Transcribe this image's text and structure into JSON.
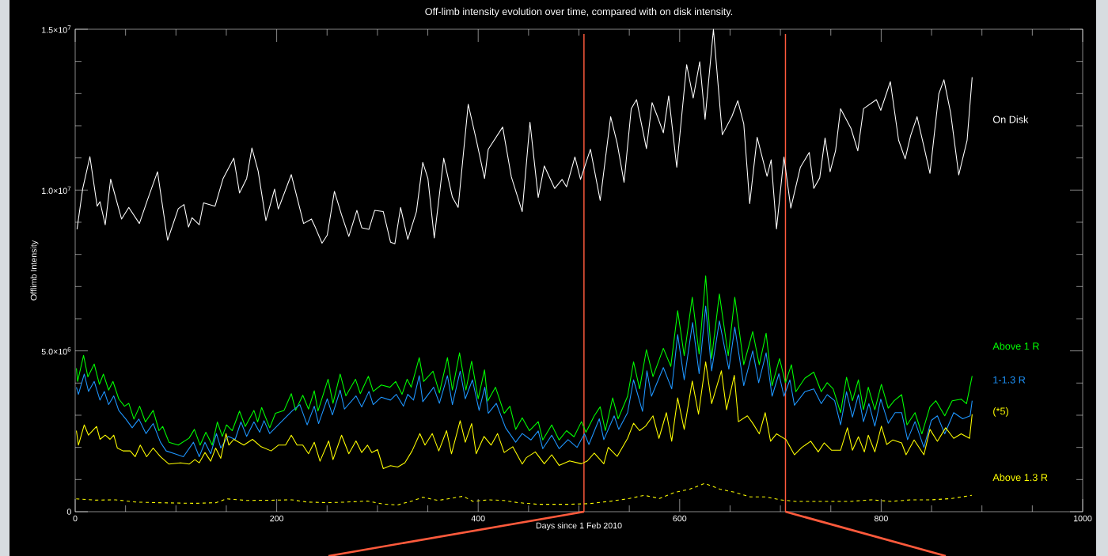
{
  "chart_data": {
    "type": "line",
    "title": "Off-limb intensity evolution over time, compared with on disk intensity.",
    "xlabel": "Days since 1 Feb 2010",
    "ylabel": "Offlimb Intensity",
    "xlim": [
      0,
      1000
    ],
    "ylim": [
      0,
      15000000.0
    ],
    "xticks": [
      0,
      {
        "value": 50,
        "label": null
      },
      {
        "value": 100,
        "label": null
      },
      {
        "value": 150,
        "label": null
      },
      200,
      {
        "value": 250,
        "label": null
      },
      {
        "value": 300,
        "label": null
      },
      {
        "value": 350,
        "label": null
      },
      400,
      {
        "value": 450,
        "label": null
      },
      {
        "value": 500,
        "label": null
      },
      {
        "value": 550,
        "label": null
      },
      600,
      {
        "value": 650,
        "label": null
      },
      {
        "value": 700,
        "label": null
      },
      {
        "value": 750,
        "label": null
      },
      800,
      {
        "value": 850,
        "label": null
      },
      {
        "value": 900,
        "label": null
      },
      {
        "value": 950,
        "label": null
      },
      1000
    ],
    "yticks": [
      0,
      {
        "value": 1000000.0,
        "label": null
      },
      {
        "value": 2000000.0,
        "label": null
      },
      {
        "value": 3000000.0,
        "label": null
      },
      {
        "value": 4000000.0,
        "label": null
      },
      {
        "value": 5000000.0,
        "label": "5.0×10$^{6}$"
      },
      {
        "value": 6000000.0,
        "label": null
      },
      {
        "value": 7000000.0,
        "label": null
      },
      {
        "value": 8000000.0,
        "label": null
      },
      {
        "value": 9000000.0,
        "label": null
      },
      {
        "value": 10000000.0,
        "label": "1.0×10$^{7}$"
      },
      {
        "value": 11000000.0,
        "label": null
      },
      {
        "value": 12000000.0,
        "label": null
      },
      {
        "value": 13000000.0,
        "label": null
      },
      {
        "value": 14000000.0,
        "label": null
      },
      {
        "value": 15000000.0,
        "label": "1.5×10$^{7}$"
      }
    ],
    "marker": "none",
    "ref_lines": [
      {
        "axis": "x",
        "value": 505,
        "color": "#ff5a3c"
      },
      {
        "axis": "x",
        "value": 705,
        "color": "#ff5a3c"
      }
    ],
    "series": [
      {
        "name": "On Disk",
        "color": "#ffffff",
        "line_style": "solid",
        "x": [
          1.8,
          7.5,
          14.6,
          21.8,
          24.6,
          29.8,
          35.2,
          46.0,
          53.2,
          63.7,
          71.7,
          81.7,
          91.7,
          102.3,
          108,
          112.5,
          116,
          123.1,
          127.4,
          138.8,
          146.8,
          157.4,
          163.1,
          170.2,
          175.4,
          181.6,
          189.3,
          197.9,
          201.6,
          214.5,
          226.7,
          234.5,
          238.2,
          245.0,
          250.2,
          257.3,
          264.4,
          271.6,
          279.6,
          284.4,
          291.6,
          297.3,
          305.8,
          313.0,
          317.3,
          323.0,
          330.1,
          338.7,
          345.0,
          350.1,
          356.4,
          365.8,
          374.4,
          380.1,
          390.1,
          398.6,
          406.3,
          410.0,
          424.3,
          432.9,
          443.7,
          451.4,
          459.6,
          465.6,
          475.9,
          483.3,
          487.7,
          496.0,
          501.6,
          511.4,
          521.1,
          531.5,
          538.0,
          544.8,
          551.9,
          557.2,
          567.0,
          572.6,
          577.9,
          583.8,
          589.1,
          597.1,
          606.9,
          613.4,
          619.9,
          625.2,
          633.5,
          642.3,
          651.8,
          657.7,
          663.6,
          669.5,
          676.9,
          686.7,
          690.8,
          696.1,
          703.5,
          710.3,
          719.8,
          728.6,
          733.1,
          739.0,
          744.3,
          749.3,
          754.7,
          759.7,
          770.0,
          776.8,
          782.5,
          795.2,
          799.6,
          809.1,
          817.3,
          823.8,
          829.2,
          835.6,
          842.4,
          848.4,
          857.2,
          862.3,
          869.0,
          877.0,
          885.3,
          890.3
        ],
        "values": [
          8780000.0,
          10050000.0,
          11040000.0,
          9500000.0,
          9640000.0,
          8920000.0,
          10340000.0,
          9100000.0,
          9460000.0,
          8960000.0,
          9690000.0,
          10570000.0,
          8440000.0,
          9420000.0,
          9550000.0,
          8850000.0,
          9140000.0,
          8920000.0,
          9600000.0,
          9500000.0,
          10360000.0,
          10990000.0,
          9910000.0,
          10360000.0,
          11310000.0,
          10590000.0,
          9050000.0,
          10030000.0,
          9410000.0,
          10480000.0,
          8960000.0,
          9100000.0,
          8850000.0,
          8350000.0,
          8600000.0,
          9960000.0,
          9230000.0,
          8560000.0,
          9370000.0,
          8830000.0,
          8780000.0,
          9370000.0,
          9330000.0,
          8380000.0,
          8330000.0,
          9460000.0,
          8470000.0,
          9330000.0,
          10860000.0,
          10360000.0,
          8510000.0,
          10990000.0,
          9780000.0,
          9460000.0,
          12670000.0,
          11490000.0,
          10360000.0,
          11270000.0,
          11960000.0,
          10410000.0,
          9330000.0,
          12110000.0,
          9770000.0,
          10750000.0,
          10050000.0,
          10330000.0,
          10100000.0,
          11030000.0,
          10330000.0,
          11270000.0,
          9680000.0,
          12280000.0,
          11450000.0,
          10240000.0,
          12530000.0,
          12810000.0,
          11290000.0,
          12720000.0,
          12290000.0,
          11780000.0,
          12930000.0,
          10710000.0,
          13900000.0,
          12860000.0,
          13990000.0,
          12200000.0,
          15000000.0,
          11720000.0,
          12290000.0,
          12780000.0,
          12060000.0,
          9580000.0,
          11640000.0,
          10430000.0,
          10940000.0,
          8790000.0,
          11030000.0,
          9440000.0,
          10710000.0,
          11170000.0,
          10050000.0,
          10380000.0,
          11620000.0,
          10570000.0,
          11220000.0,
          12530000.0,
          11920000.0,
          11220000.0,
          12530000.0,
          12810000.0,
          12480000.0,
          13370000.0,
          11550000.0,
          10970000.0,
          11690000.0,
          12280000.0,
          11360000.0,
          10520000.0,
          12990000.0,
          13430000.0,
          12390000.0,
          10470000.0,
          11550000.0,
          13510000.0
        ]
      },
      {
        "name": "Above 1 R",
        "color": "#00ff00",
        "line_style": "solid",
        "x": [
          1.2,
          2.4,
          8.3,
          12.6,
          18.9,
          24.0,
          28.0,
          33.2,
          37.5,
          43.2,
          48.9,
          53.2,
          58.3,
          64.0,
          69.7,
          77.4,
          83.2,
          86.9,
          93.1,
          102.3,
          113.1,
          118.3,
          124.0,
          129.7,
          136.0,
          141.1,
          146.0,
          150.2,
          155.9,
          163.1,
          168.8,
          177.4,
          181.1,
          185.1,
          193.1,
          198.8,
          207.3,
          214.5,
          218.8,
          225.9,
          231.6,
          237.3,
          241.0,
          251.0,
          255.9,
          263.0,
          268.7,
          278.2,
          283.0,
          291.0,
          295.8,
          303.8,
          312.4,
          318.1,
          324.4,
          329.5,
          333.5,
          341.5,
          345.8,
          355.2,
          361.5,
          369.5,
          374.4,
          381.5,
          387.8,
          393.5,
          400.0,
          406.3,
          409.5,
          417.2,
          425.8,
          431.5,
          437.2,
          443.7,
          450.8,
          459.6,
          464.1,
          473.0,
          480.3,
          487.7,
          495.1,
          502.5,
          507.0,
          515.2,
          521.1,
          526.2,
          533.5,
          538.9,
          548.3,
          554.2,
          560.2,
          567.0,
          573.5,
          583.8,
          591.2,
          598.0,
          604.5,
          612.5,
          619.3,
          625.8,
          631.7,
          639.4,
          648.2,
          654.7,
          663.6,
          672.5,
          679.0,
          685.8,
          691.7,
          699.1,
          705.0,
          710.9,
          715.3,
          724.2,
          733.1,
          740.5,
          746.4,
          752.3,
          759.7,
          765.6,
          771.5,
          777.4,
          782.4,
          787.2,
          793.7,
          800.2,
          807.0,
          812.9,
          820.3,
          825.6,
          833.6,
          840.4,
          848.4,
          854.3,
          863.1,
          870.5,
          879.4,
          884.7,
          890.3
        ],
        "values": [
          4460000.0,
          4050000.0,
          4860000.0,
          4190000.0,
          4590000.0,
          3960000.0,
          4280000.0,
          3780000.0,
          4050000.0,
          3510000.0,
          3280000.0,
          3370000.0,
          2880000.0,
          3280000.0,
          2790000.0,
          3150000.0,
          2520000.0,
          2650000.0,
          2160000.0,
          2070000.0,
          2290000.0,
          2560000.0,
          2070000.0,
          2470000.0,
          2070000.0,
          2790000.0,
          2340000.0,
          2700000.0,
          2520000.0,
          3130000.0,
          2650000.0,
          3150000.0,
          2790000.0,
          3240000.0,
          2610000.0,
          3060000.0,
          3150000.0,
          3670000.0,
          3150000.0,
          3620000.0,
          3190000.0,
          3760000.0,
          3130000.0,
          4120000.0,
          3370000.0,
          4280000.0,
          3600000.0,
          4120000.0,
          3670000.0,
          4210000.0,
          3740000.0,
          3940000.0,
          3870000.0,
          4050000.0,
          3650000.0,
          4120000.0,
          3870000.0,
          4790000.0,
          4050000.0,
          4370000.0,
          3690000.0,
          4790000.0,
          3780000.0,
          4940000.0,
          3780000.0,
          4680000.0,
          3510000.0,
          4410000.0,
          3440000.0,
          3870000.0,
          3060000.0,
          3280000.0,
          2560000.0,
          2920000.0,
          2520000.0,
          2800000.0,
          2230000.0,
          2700000.0,
          2230000.0,
          2520000.0,
          2330000.0,
          2800000.0,
          2470000.0,
          2980000.0,
          3260000.0,
          2520000.0,
          3540000.0,
          2890000.0,
          3590000.0,
          4660000.0,
          3820000.0,
          5040000.0,
          4200000.0,
          5080000.0,
          4520000.0,
          6250000.0,
          4850000.0,
          6670000.0,
          4900000.0,
          7330000.0,
          4760000.0,
          6770000.0,
          4850000.0,
          6670000.0,
          4570000.0,
          5600000.0,
          4570000.0,
          5550000.0,
          3920000.0,
          4760000.0,
          4010000.0,
          4570000.0,
          3730000.0,
          4150000.0,
          4340000.0,
          3730000.0,
          4010000.0,
          3820000.0,
          3080000.0,
          4180000.0,
          3450000.0,
          4100000.0,
          3170000.0,
          3870000.0,
          3170000.0,
          3960000.0,
          3220000.0,
          3450000.0,
          3640000.0,
          2700000.0,
          3080000.0,
          2420000.0,
          3260000.0,
          3450000.0,
          2980000.0,
          3450000.0,
          3500000.0,
          3360000.0,
          4220000.0
        ]
      },
      {
        "name": "1-1.3 R",
        "color": "#1e96ff",
        "line_style": "solid",
        "x": [
          1.2,
          3.2,
          9.0,
          13.2,
          18.9,
          24.6,
          28.9,
          33.2,
          38.3,
          43.2,
          50.3,
          56.6,
          63.2,
          70.3,
          77.4,
          84.6,
          90.3,
          98.9,
          107.4,
          117.4,
          123.1,
          128.8,
          134.5,
          140.2,
          144.5,
          151.7,
          158.8,
          164.5,
          170.2,
          177.4,
          183.1,
          187.4,
          193.1,
          201.6,
          215.9,
          223.0,
          230.2,
          237.3,
          241.6,
          250.2,
          255.3,
          263.0,
          267.3,
          278.7,
          284.4,
          291.6,
          295.8,
          303.8,
          312.9,
          318.7,
          325.8,
          330.1,
          335.8,
          341.5,
          345.0,
          355.8,
          361.5,
          369.5,
          374.4,
          382.1,
          387.2,
          394.3,
          400.9,
          406.6,
          410.0,
          418.0,
          427.2,
          437.2,
          443.7,
          452.3,
          459.6,
          464.1,
          473.0,
          480.3,
          489.2,
          498.1,
          505.5,
          509.9,
          520.2,
          524.7,
          535.0,
          539.5,
          548.3,
          554.2,
          563.1,
          567.5,
          572.0,
          583.8,
          592.1,
          598.0,
          604.5,
          612.8,
          619.3,
          625.8,
          631.7,
          639.4,
          648.8,
          654.7,
          663.6,
          672.5,
          678.4,
          685.8,
          691.7,
          698.5,
          703.5,
          709.4,
          713.9,
          724.2,
          733.1,
          740.5,
          746.4,
          753.8,
          759.7,
          765.6,
          771.5,
          777.4,
          782.4,
          787.8,
          793.7,
          799.6,
          807.0,
          813.8,
          820.3,
          826.2,
          833.6,
          842.4,
          849.8,
          855.8,
          863.1,
          872.0,
          880.9,
          888.3,
          890.3
        ],
        "values": [
          3870000.0,
          3650000.0,
          4280000.0,
          3740000.0,
          4050000.0,
          3470000.0,
          3740000.0,
          3330000.0,
          3600000.0,
          3150000.0,
          2880000.0,
          2610000.0,
          2880000.0,
          2430000.0,
          2740000.0,
          2160000.0,
          1890000.0,
          1800000.0,
          1710000.0,
          2160000.0,
          1710000.0,
          2160000.0,
          1800000.0,
          2430000.0,
          1980000.0,
          2340000.0,
          2250000.0,
          2790000.0,
          2340000.0,
          2790000.0,
          2470000.0,
          2830000.0,
          2430000.0,
          2700000.0,
          3150000.0,
          3330000.0,
          2700000.0,
          3280000.0,
          2740000.0,
          3510000.0,
          3010000.0,
          3780000.0,
          3190000.0,
          3600000.0,
          3260000.0,
          3740000.0,
          3330000.0,
          3560000.0,
          3470000.0,
          3650000.0,
          3280000.0,
          3650000.0,
          3470000.0,
          4230000.0,
          3420000.0,
          3870000.0,
          3370000.0,
          4230000.0,
          3330000.0,
          4370000.0,
          3510000.0,
          4100000.0,
          3150000.0,
          3870000.0,
          3060000.0,
          3370000.0,
          2610000.0,
          2160000.0,
          2430000.0,
          2230000.0,
          2510000.0,
          1960000.0,
          2380000.0,
          1960000.0,
          2240000.0,
          2000000.0,
          2420000.0,
          2090000.0,
          2890000.0,
          2240000.0,
          2980000.0,
          2560000.0,
          3080000.0,
          4100000.0,
          3120000.0,
          4380000.0,
          3590000.0,
          4480000.0,
          3820000.0,
          5510000.0,
          4100000.0,
          5880000.0,
          4290000.0,
          6390000.0,
          4380000.0,
          5930000.0,
          4430000.0,
          5740000.0,
          3920000.0,
          5000000.0,
          4010000.0,
          4940000.0,
          3590000.0,
          4290000.0,
          3590000.0,
          4100000.0,
          3310000.0,
          3730000.0,
          3820000.0,
          3360000.0,
          3640000.0,
          3450000.0,
          2700000.0,
          3730000.0,
          2940000.0,
          3640000.0,
          2800000.0,
          3360000.0,
          2660000.0,
          3500000.0,
          2750000.0,
          3080000.0,
          3080000.0,
          2240000.0,
          2800000.0,
          2000000.0,
          2840000.0,
          2980000.0,
          2420000.0,
          3080000.0,
          2890000.0,
          2980000.0,
          3450000.0
        ]
      },
      {
        "name": "(*5)",
        "color": "#ffff00",
        "line_style": "solid",
        "x": [
          1.2,
          3.2,
          9.0,
          13.2,
          21.2,
          24.6,
          29.8,
          34.6,
          38.3,
          41.8,
          47.5,
          54.6,
          59.5,
          64.6,
          70.9,
          77.4,
          84.6,
          93.1,
          104.6,
          113.1,
          118.8,
          123.1,
          128.8,
          134.5,
          139.4,
          144.5,
          149.7,
          152.5,
          157.4,
          167.4,
          176.0,
          184.5,
          194.5,
          201.6,
          208.8,
          214.5,
          220.2,
          225.9,
          231.6,
          237.3,
          243.0,
          251.6,
          255.9,
          264.4,
          271.6,
          278.7,
          284.4,
          290.1,
          294.4,
          300.1,
          305.8,
          312.9,
          320.1,
          327.2,
          334.4,
          342.1,
          347.2,
          354.4,
          360.9,
          368.6,
          373.5,
          382.1,
          387.2,
          393.5,
          398.0,
          405.8,
          412.9,
          419.2,
          425.8,
          434.3,
          443.7,
          447.8,
          456.7,
          465.6,
          473.0,
          480.3,
          490.7,
          502.5,
          508.4,
          515.2,
          524.7,
          529.1,
          538.0,
          548.3,
          554.2,
          560.2,
          566.1,
          573.5,
          579.4,
          586.8,
          592.1,
          598.0,
          604.5,
          612.5,
          618.7,
          625.8,
          631.7,
          641.4,
          646.5,
          654.2,
          658.3,
          667.2,
          672.5,
          679.0,
          684.9,
          690.2,
          696.1,
          705.6,
          713.9,
          721.3,
          730.1,
          737.5,
          743.4,
          750.8,
          759.7,
          766.5,
          771.5,
          777.4,
          783.3,
          787.2,
          793.7,
          800.2,
          805.5,
          811.4,
          820.3,
          824.7,
          832.7,
          842.4,
          848.4,
          855.8,
          864.0,
          872.0,
          879.4,
          887.7,
          890.3
        ],
        "values": [
          2520000.0,
          2070000.0,
          2700000.0,
          2380000.0,
          2650000.0,
          2250000.0,
          2380000.0,
          2250000.0,
          2380000.0,
          1980000.0,
          1890000.0,
          1890000.0,
          1710000.0,
          2070000.0,
          1710000.0,
          1980000.0,
          1710000.0,
          1480000.0,
          1520000.0,
          1480000.0,
          1620000.0,
          1520000.0,
          1840000.0,
          1570000.0,
          1980000.0,
          1660000.0,
          2430000.0,
          2070000.0,
          2250000.0,
          2070000.0,
          2250000.0,
          2020000.0,
          1890000.0,
          2070000.0,
          2070000.0,
          2380000.0,
          2070000.0,
          2070000.0,
          1800000.0,
          2160000.0,
          1570000.0,
          2200000.0,
          1620000.0,
          2380000.0,
          1800000.0,
          2200000.0,
          1840000.0,
          2070000.0,
          1840000.0,
          1930000.0,
          1340000.0,
          1430000.0,
          1390000.0,
          1520000.0,
          1890000.0,
          2430000.0,
          2070000.0,
          2430000.0,
          1890000.0,
          2520000.0,
          1800000.0,
          2830000.0,
          2160000.0,
          2740000.0,
          1800000.0,
          2340000.0,
          2070000.0,
          2430000.0,
          1840000.0,
          2020000.0,
          1480000.0,
          1680000.0,
          1860000.0,
          1490000.0,
          1770000.0,
          1440000.0,
          1580000.0,
          1490000.0,
          1580000.0,
          1820000.0,
          1490000.0,
          2000000.0,
          1720000.0,
          2280000.0,
          2750000.0,
          2520000.0,
          2660000.0,
          2980000.0,
          2280000.0,
          3080000.0,
          2190000.0,
          3540000.0,
          2560000.0,
          4060000.0,
          3030000.0,
          4660000.0,
          3360000.0,
          4380000.0,
          3170000.0,
          4240000.0,
          2800000.0,
          2980000.0,
          2750000.0,
          2420000.0,
          3080000.0,
          2190000.0,
          2420000.0,
          2240000.0,
          1770000.0,
          2000000.0,
          2190000.0,
          1860000.0,
          2140000.0,
          1910000.0,
          1910000.0,
          2610000.0,
          1910000.0,
          2330000.0,
          1860000.0,
          2380000.0,
          1860000.0,
          2660000.0,
          2090000.0,
          2230000.0,
          2140000.0,
          1770000.0,
          2230000.0,
          1770000.0,
          2560000.0,
          2190000.0,
          2610000.0,
          2280000.0,
          2420000.0,
          2280000.0,
          3030000.0
        ]
      },
      {
        "name": "Above 1.3 R",
        "color": "#ffff00",
        "line_style": "dashed",
        "x": [
          1,
          20,
          40,
          60,
          80,
          100,
          120,
          140,
          150,
          170,
          200,
          215,
          230,
          250,
          270,
          290,
          305,
          320,
          335,
          345,
          360,
          370,
          385,
          395,
          410,
          425,
          440,
          460,
          490,
          510,
          530,
          550,
          565,
          580,
          595,
          610,
          625,
          640,
          655,
          670,
          685,
          700,
          715,
          730,
          750,
          770,
          790,
          810,
          830,
          850,
          870,
          890
        ],
        "values": [
          400000.0,
          360000.0,
          370000.0,
          300000.0,
          280000.0,
          270000.0,
          260000.0,
          280000.0,
          400000.0,
          350000.0,
          360000.0,
          370000.0,
          300000.0,
          280000.0,
          300000.0,
          330000.0,
          240000.0,
          210000.0,
          340000.0,
          450000.0,
          350000.0,
          400000.0,
          480000.0,
          320000.0,
          370000.0,
          350000.0,
          280000.0,
          230000.0,
          230000.0,
          250000.0,
          320000.0,
          410000.0,
          510000.0,
          410000.0,
          600000.0,
          700000.0,
          880000.0,
          700000.0,
          600000.0,
          460000.0,
          460000.0,
          370000.0,
          320000.0,
          320000.0,
          320000.0,
          320000.0,
          370000.0,
          320000.0,
          370000.0,
          370000.0,
          410000.0,
          510000.0
        ]
      }
    ]
  }
}
